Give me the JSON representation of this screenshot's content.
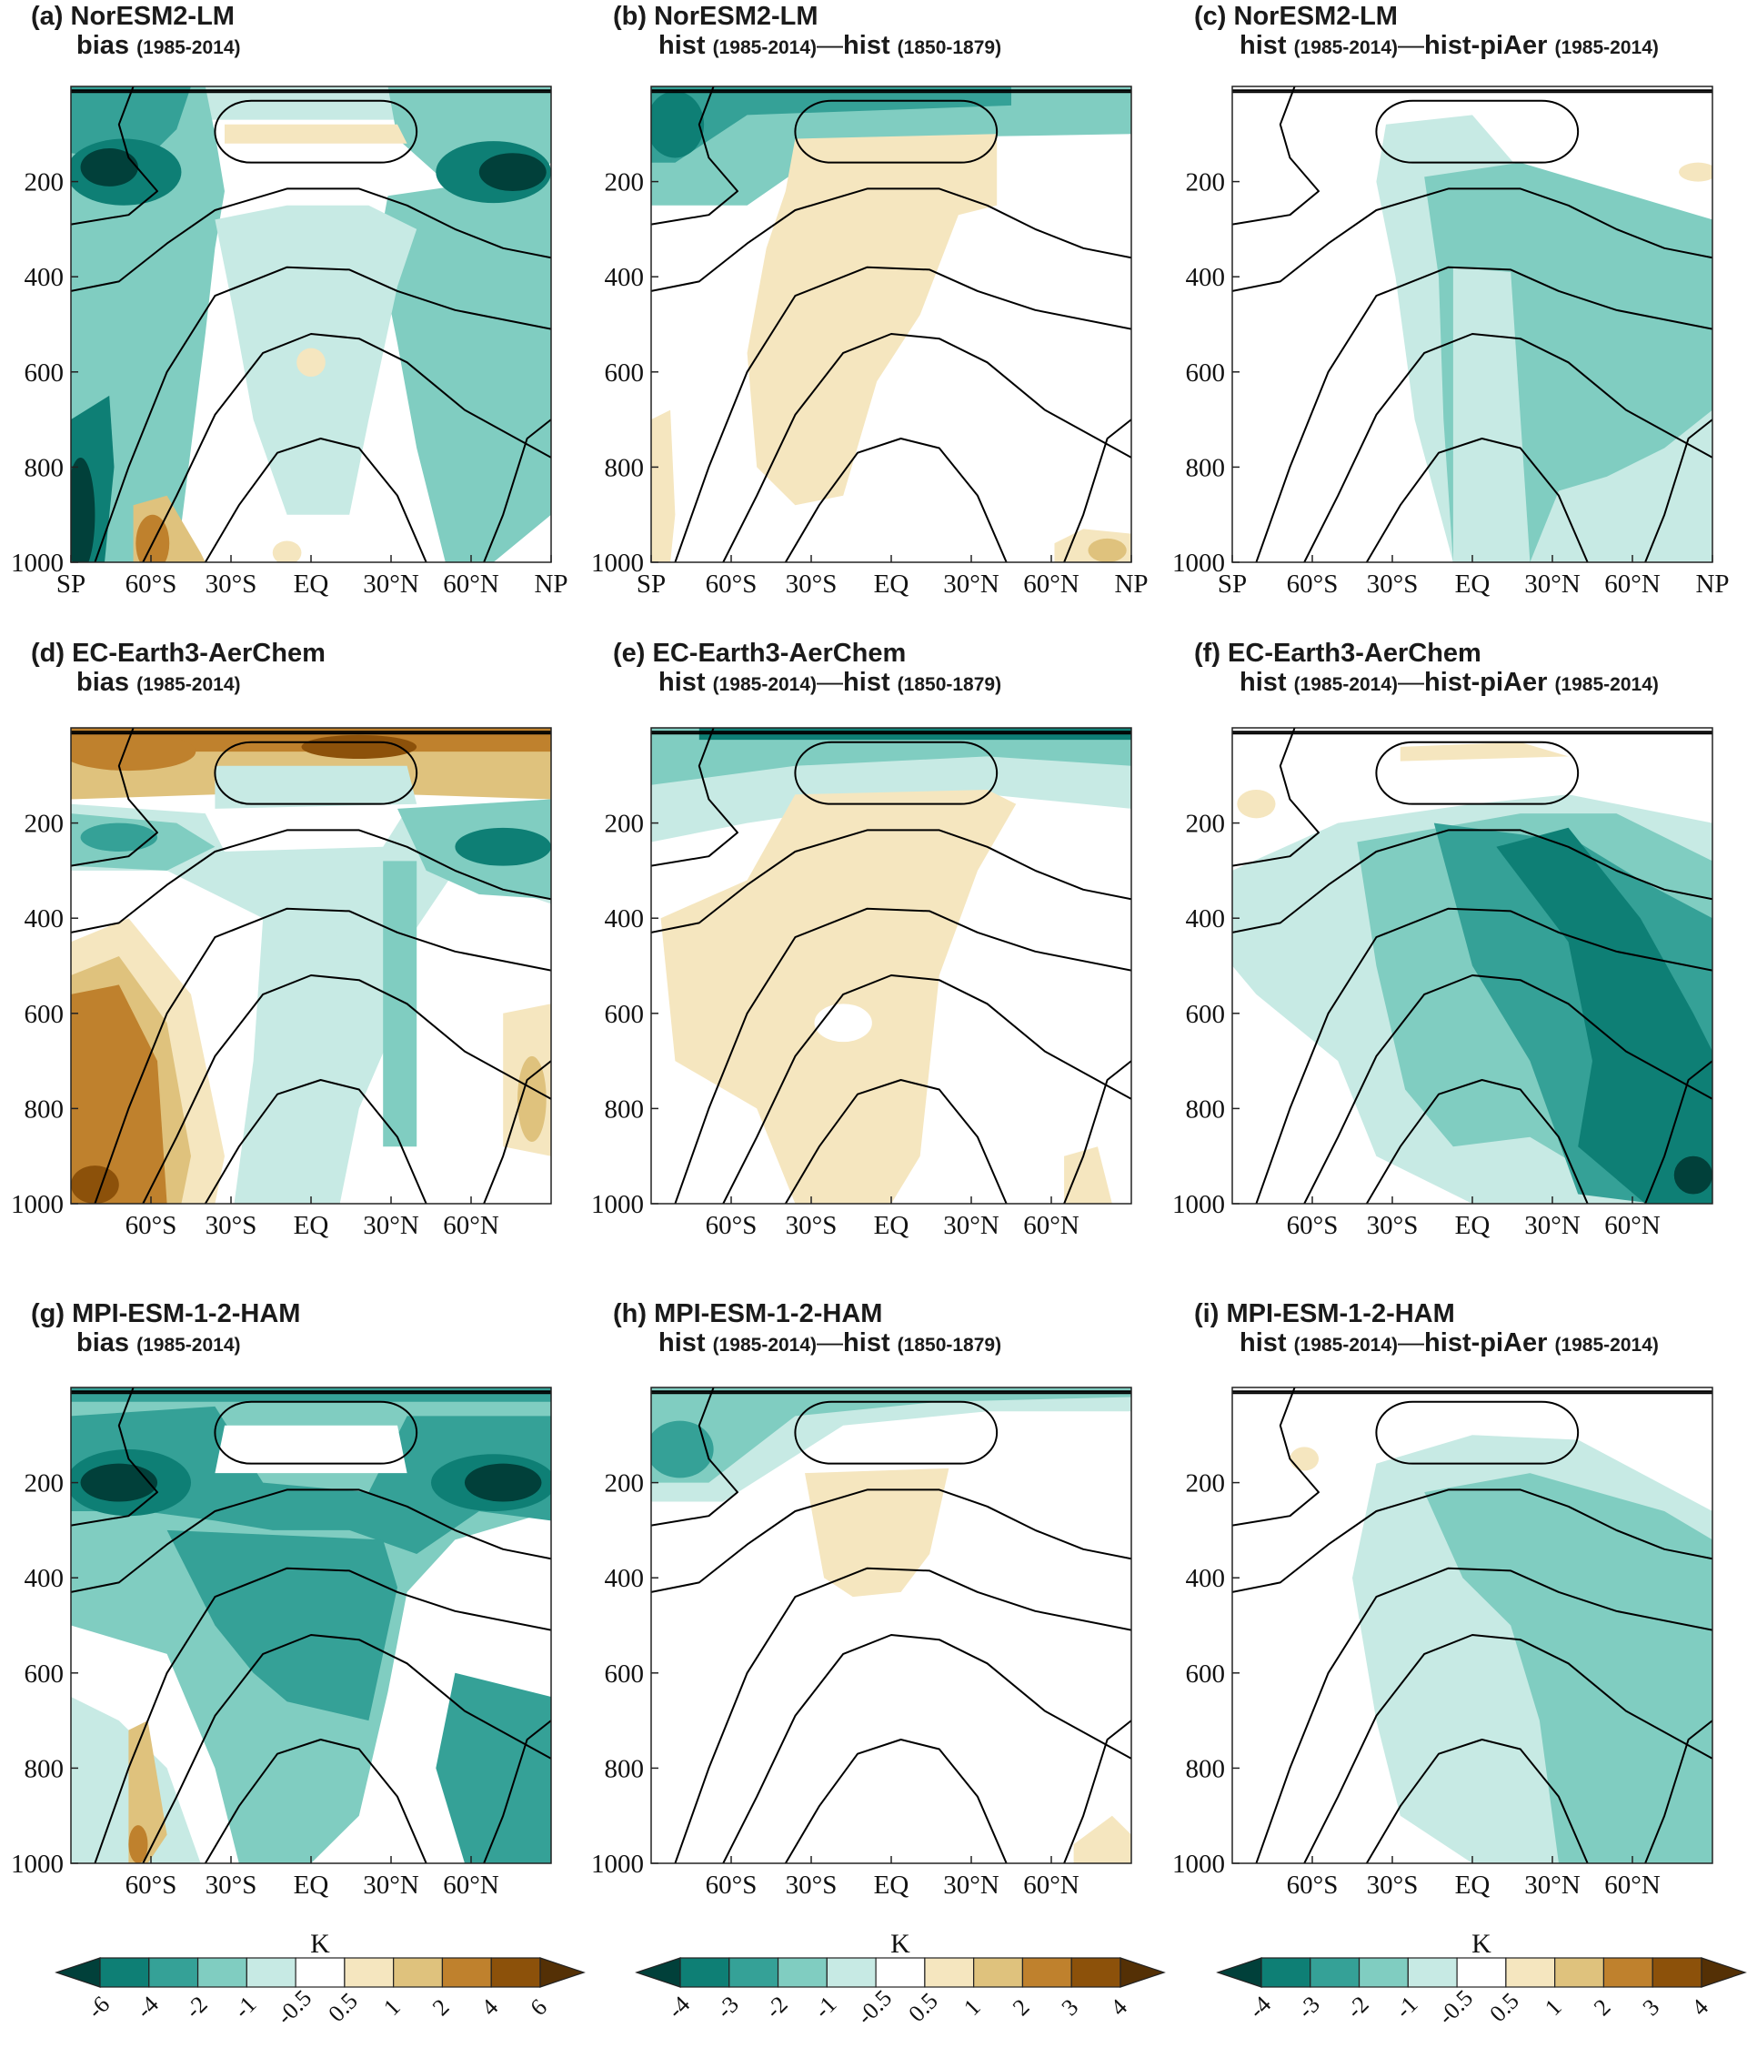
{
  "figure": {
    "colors": {
      "teal_6": "#01403a",
      "teal_4": "#0e7f75",
      "teal_2": "#35a197",
      "teal_1": "#80cdc1",
      "teal_05": "#c7eae4",
      "white": "#ffffff",
      "brown_05": "#f5e6bf",
      "brown_1": "#dfc27d",
      "brown_2": "#bf812d",
      "brown_4": "#8c510a",
      "brown_6": "#543005",
      "contour": "#000000"
    }
  },
  "chart_data": [
    {
      "id": "a",
      "type": "heatmap",
      "label": "(a)",
      "model": "NorESM2-LM",
      "metric": "bias",
      "period_a": "(1985-2014)",
      "xlabel": "",
      "ylabel": "",
      "ylim": [
        1000,
        0
      ],
      "yticks": [
        "200",
        "400",
        "600",
        "800",
        "1000"
      ],
      "xticks": [
        "SP",
        "60°S",
        "30°S",
        "EQ",
        "30°N",
        "60°N",
        "NP"
      ],
      "style": "bias"
    },
    {
      "id": "b",
      "type": "heatmap",
      "label": "(b)",
      "model": "NorESM2-LM",
      "metric": "hist",
      "period_a": "(1985-2014)",
      "dash": "—",
      "metric_b": "hist",
      "period_b": "(1850-1879)",
      "ylim": [
        1000,
        0
      ],
      "yticks": [
        "200",
        "400",
        "600",
        "800",
        "1000"
      ],
      "xticks": [
        "SP",
        "60°S",
        "30°S",
        "EQ",
        "30°N",
        "60°N",
        "NP"
      ],
      "style": "histdiff"
    },
    {
      "id": "c",
      "type": "heatmap",
      "label": "(c)",
      "model": "NorESM2-LM",
      "metric": "hist",
      "period_a": "(1985-2014)",
      "dash": "—",
      "metric_b": "hist-piAer",
      "period_b": "(1985-2014)",
      "ylim": [
        1000,
        0
      ],
      "yticks": [
        "200",
        "400",
        "600",
        "800",
        "1000"
      ],
      "xticks": [
        "SP",
        "60°S",
        "30°S",
        "EQ",
        "30°N",
        "60°N",
        "NP"
      ],
      "style": "aer"
    },
    {
      "id": "d",
      "type": "heatmap",
      "label": "(d)",
      "model": "EC-Earth3-AerChem",
      "metric": "bias",
      "period_a": "(1985-2014)",
      "ylim": [
        1000,
        0
      ],
      "yticks": [
        "200",
        "400",
        "600",
        "800",
        "1000"
      ],
      "xticks": [
        "60°S",
        "30°S",
        "EQ",
        "30°N",
        "60°N"
      ],
      "style": "bias_ec"
    },
    {
      "id": "e",
      "type": "heatmap",
      "label": "(e)",
      "model": "EC-Earth3-AerChem",
      "metric": "hist",
      "period_a": "(1985-2014)",
      "dash": "—",
      "metric_b": "hist",
      "period_b": "(1850-1879)",
      "ylim": [
        1000,
        0
      ],
      "yticks": [
        "200",
        "400",
        "600",
        "800",
        "1000"
      ],
      "xticks": [
        "60°S",
        "30°S",
        "EQ",
        "30°N",
        "60°N"
      ],
      "style": "histdiff_ec"
    },
    {
      "id": "f",
      "type": "heatmap",
      "label": "(f)",
      "model": "EC-Earth3-AerChem",
      "metric": "hist",
      "period_a": "(1985-2014)",
      "dash": "—",
      "metric_b": "hist-piAer",
      "period_b": "(1985-2014)",
      "ylim": [
        1000,
        0
      ],
      "yticks": [
        "200",
        "400",
        "600",
        "800",
        "1000"
      ],
      "xticks": [
        "60°S",
        "30°S",
        "EQ",
        "30°N",
        "60°N"
      ],
      "style": "aer_ec"
    },
    {
      "id": "g",
      "type": "heatmap",
      "label": "(g)",
      "model": "MPI-ESM-1-2-HAM",
      "metric": "bias",
      "period_a": "(1985-2014)",
      "ylim": [
        1000,
        0
      ],
      "yticks": [
        "200",
        "400",
        "600",
        "800",
        "1000"
      ],
      "xticks": [
        "60°S",
        "30°S",
        "EQ",
        "30°N",
        "60°N"
      ],
      "style": "bias_mpi"
    },
    {
      "id": "h",
      "type": "heatmap",
      "label": "(h)",
      "model": "MPI-ESM-1-2-HAM",
      "metric": "hist",
      "period_a": "(1985-2014)",
      "dash": "—",
      "metric_b": "hist",
      "period_b": "(1850-1879)",
      "ylim": [
        1000,
        0
      ],
      "yticks": [
        "200",
        "400",
        "600",
        "800",
        "1000"
      ],
      "xticks": [
        "60°S",
        "30°S",
        "EQ",
        "30°N",
        "60°N"
      ],
      "style": "histdiff_mpi"
    },
    {
      "id": "i",
      "type": "heatmap",
      "label": "(i)",
      "model": "MPI-ESM-1-2-HAM",
      "metric": "hist",
      "period_a": "(1985-2014)",
      "dash": "—",
      "metric_b": "hist-piAer",
      "period_b": "(1985-2014)",
      "ylim": [
        1000,
        0
      ],
      "yticks": [
        "200",
        "400",
        "600",
        "800",
        "1000"
      ],
      "xticks": [
        "60°S",
        "30°S",
        "EQ",
        "30°N",
        "60°N"
      ],
      "style": "aer_mpi"
    }
  ],
  "colorbars": [
    {
      "unit": "K",
      "ticks": [
        "-6",
        "-4",
        "-2",
        "-1",
        "-0.5",
        "0.5",
        "1",
        "2",
        "4",
        "6"
      ]
    },
    {
      "unit": "K",
      "ticks": [
        "-4",
        "-3",
        "-2",
        "-1",
        "-0.5",
        "0.5",
        "1",
        "2",
        "3",
        "4"
      ]
    },
    {
      "unit": "K",
      "ticks": [
        "-4",
        "-3",
        "-2",
        "-1",
        "-0.5",
        "0.5",
        "1",
        "2",
        "3",
        "4"
      ]
    }
  ]
}
